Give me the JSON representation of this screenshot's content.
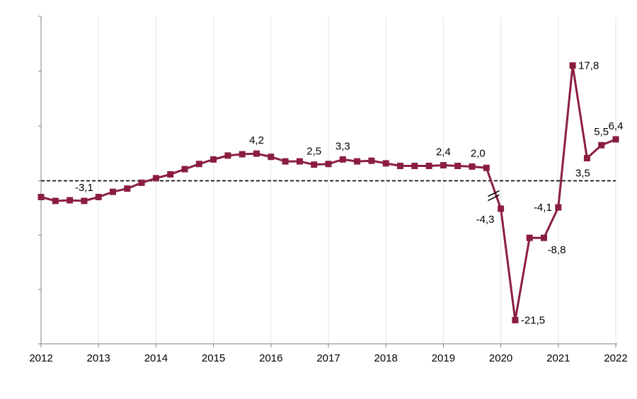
{
  "chart_data": {
    "type": "line",
    "title": "",
    "xlabel": "",
    "ylabel": "",
    "x_ticks": [
      "2012",
      "2013",
      "2014",
      "2015",
      "2016",
      "2017",
      "2018",
      "2019",
      "2020",
      "2021",
      "2022"
    ],
    "series": [
      {
        "color": "#8b1e3f",
        "marker": "square",
        "x": [
          2012.0,
          2012.25,
          2012.5,
          2012.75,
          2013.0,
          2013.25,
          2013.5,
          2013.75,
          2014.0,
          2014.25,
          2014.5,
          2014.75,
          2015.0,
          2015.25,
          2015.5,
          2015.75,
          2016.0,
          2016.25,
          2016.5,
          2016.75,
          2017.0,
          2017.25,
          2017.5,
          2017.75,
          2018.0,
          2018.25,
          2018.5,
          2018.75,
          2019.0,
          2019.25,
          2019.5,
          2019.75,
          2020.0,
          2020.25,
          2020.5,
          2020.75,
          2021.0,
          2021.25,
          2021.5,
          2021.75,
          2022.0
        ],
        "values": [
          -2.5,
          -3.1,
          -3.0,
          -3.1,
          -2.5,
          -1.7,
          -1.2,
          -0.3,
          0.4,
          1.0,
          1.8,
          2.6,
          3.3,
          3.9,
          4.1,
          4.2,
          3.7,
          3.0,
          3.0,
          2.5,
          2.6,
          3.3,
          3.0,
          3.1,
          2.7,
          2.3,
          2.3,
          2.3,
          2.4,
          2.3,
          2.2,
          2.0,
          -4.3,
          -21.5,
          -8.8,
          -8.8,
          -4.1,
          17.8,
          3.5,
          5.5,
          6.4
        ]
      }
    ],
    "annotations": [
      {
        "index": 3,
        "text": "-3,1",
        "pos": "above"
      },
      {
        "index": 15,
        "text": "4,2",
        "pos": "above"
      },
      {
        "index": 19,
        "text": "2,5",
        "pos": "above"
      },
      {
        "index": 21,
        "text": "3,3",
        "pos": "above"
      },
      {
        "index": 28,
        "text": "2,4",
        "pos": "above"
      },
      {
        "index": 31,
        "text": "2,0",
        "pos": "above-left"
      },
      {
        "index": 32,
        "text": "-4,3",
        "pos": "below-left"
      },
      {
        "index": 33,
        "text": "-21,5",
        "pos": "right"
      },
      {
        "index": 35,
        "text": "-8,8",
        "pos": "below-right"
      },
      {
        "index": 36,
        "text": "-4,1",
        "pos": "left"
      },
      {
        "index": 37,
        "text": "17,8",
        "pos": "right"
      },
      {
        "index": 38,
        "text": "3,5",
        "pos": "below"
      },
      {
        "index": 39,
        "text": "5,5",
        "pos": "above"
      },
      {
        "index": 40,
        "text": "6,4",
        "pos": "above"
      }
    ],
    "axis_break": {
      "between_index": [
        31,
        32
      ]
    },
    "reference_line": {
      "y": 0,
      "style": "dashed"
    },
    "xlim": [
      2012,
      2022
    ],
    "ylim": [
      -30,
      30
    ],
    "grid": "vertical",
    "legend": "none"
  }
}
